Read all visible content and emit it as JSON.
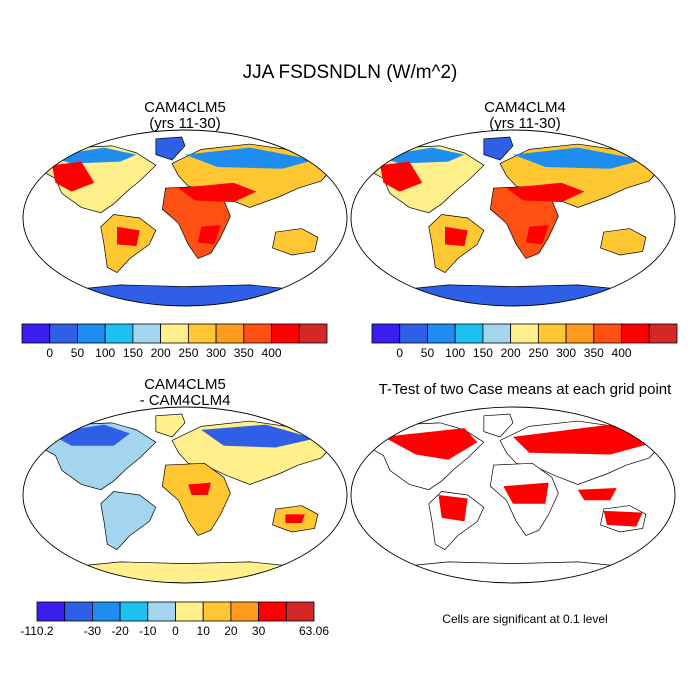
{
  "title": "JJA FSDSNDLN (W/m^2)",
  "panels": [
    {
      "title": "CAM4CLM5",
      "subtitle": "(yrs 11-30)"
    },
    {
      "title": "CAM4CLM4",
      "subtitle": "(yrs 11-30)"
    },
    {
      "title": "CAM4CLM5",
      "subtitle": "- CAM4CLM4"
    },
    {
      "title": "T-Test of two Case means at each grid point",
      "subtitle": ""
    }
  ],
  "note": "Cells are significant at 0.1 level",
  "colors": {
    "abs": [
      "#3a1ef0",
      "#2e5fe6",
      "#1f8cf0",
      "#1ec0f0",
      "#a3d5ee",
      "#fff08c",
      "#ffc832",
      "#ff9a1e",
      "#ff5014",
      "#ff0000",
      "#d22828"
    ],
    "diff": [
      "#3a1ef0",
      "#2e5fe6",
      "#1f8cf0",
      "#1ec0f0",
      "#a3d5ee",
      "#fff08c",
      "#ffc832",
      "#ff9a1e",
      "#ff0000",
      "#d22828"
    ],
    "sig": "#ff0000"
  },
  "chart_data": [
    {
      "type": "heatmap",
      "title": "CAM4CLM5",
      "subtitle": "(yrs 11-30)",
      "colorbar_labels": [
        "0",
        "50",
        "100",
        "150",
        "200",
        "250",
        "300",
        "350",
        "400"
      ]
    },
    {
      "type": "heatmap",
      "title": "CAM4CLM4",
      "subtitle": "(yrs 11-30)",
      "colorbar_labels": [
        "0",
        "50",
        "100",
        "150",
        "200",
        "250",
        "300",
        "350",
        "400"
      ]
    },
    {
      "type": "heatmap",
      "title": "CAM4CLM5",
      "subtitle": "- CAM4CLM4",
      "colorbar_labels": [
        "-110.2",
        "-30",
        "-20",
        "-10",
        "0",
        "10",
        "20",
        "30",
        "63.06"
      ]
    },
    {
      "type": "heatmap",
      "title": "T-Test of two Case means at each grid point"
    }
  ]
}
